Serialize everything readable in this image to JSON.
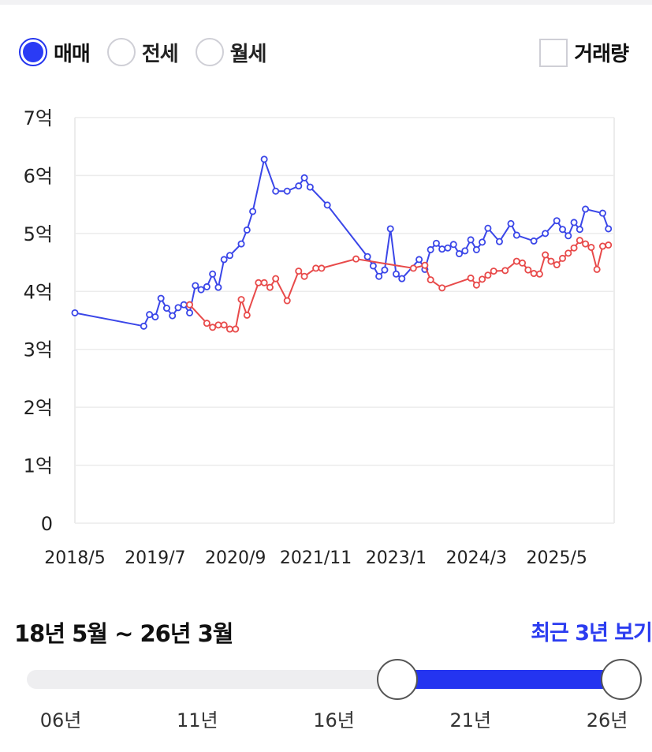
{
  "tabs": [
    {
      "label": "매매",
      "selected": true
    },
    {
      "label": "전세",
      "selected": false
    },
    {
      "label": "월세",
      "selected": false
    }
  ],
  "volume_toggle": {
    "label": "거래량",
    "checked": false
  },
  "colors": {
    "sale": "#3a46e8",
    "jeonse": "#e84a4a",
    "accent": "#2434f0",
    "grid": "#ececec"
  },
  "chart_data": {
    "type": "line",
    "y_ticks": [
      "0",
      "1억",
      "2억",
      "3억",
      "4억",
      "5억",
      "6억",
      "7억"
    ],
    "ylim": [
      0,
      7
    ],
    "y_unit": "억",
    "x_tick_labels": [
      "2018/5",
      "2019/7",
      "2020/9",
      "2021/11",
      "2023/1",
      "2024/3",
      "2025/5"
    ],
    "xlim": [
      "2018/5",
      "2026/3"
    ],
    "grid": true,
    "series": [
      {
        "color_key": "sale",
        "points": [
          [
            "2018/5",
            3.63
          ],
          [
            "2019/5",
            3.4
          ],
          [
            "2019/6",
            3.6
          ],
          [
            "2019/7",
            3.56
          ],
          [
            "2019/8",
            3.88
          ],
          [
            "2019/9",
            3.71
          ],
          [
            "2019/10",
            3.58
          ],
          [
            "2019/11",
            3.72
          ],
          [
            "2019/12",
            3.77
          ],
          [
            "2020/1",
            3.63
          ],
          [
            "2020/2",
            4.1
          ],
          [
            "2020/3",
            4.03
          ],
          [
            "2020/4",
            4.08
          ],
          [
            "2020/5",
            4.3
          ],
          [
            "2020/6",
            4.07
          ],
          [
            "2020/7",
            4.55
          ],
          [
            "2020/8",
            4.62
          ],
          [
            "2020/10",
            4.82
          ],
          [
            "2020/11",
            5.06
          ],
          [
            "2020/12",
            5.38
          ],
          [
            "2021/2",
            6.28
          ],
          [
            "2021/4",
            5.73
          ],
          [
            "2021/6",
            5.73
          ],
          [
            "2021/8",
            5.82
          ],
          [
            "2021/9",
            5.96
          ],
          [
            "2021/10",
            5.8
          ],
          [
            "2022/1",
            5.49
          ],
          [
            "2022/8",
            4.6
          ],
          [
            "2022/9",
            4.44
          ],
          [
            "2022/10",
            4.26
          ],
          [
            "2022/11",
            4.37
          ],
          [
            "2022/12",
            5.08
          ],
          [
            "2023/1",
            4.3
          ],
          [
            "2023/2",
            4.22
          ],
          [
            "2023/5",
            4.55
          ],
          [
            "2023/6",
            4.38
          ],
          [
            "2023/7",
            4.72
          ],
          [
            "2023/8",
            4.83
          ],
          [
            "2023/9",
            4.73
          ],
          [
            "2023/10",
            4.75
          ],
          [
            "2023/11",
            4.81
          ],
          [
            "2023/12",
            4.65
          ],
          [
            "2024/1",
            4.7
          ],
          [
            "2024/2",
            4.89
          ],
          [
            "2024/3",
            4.72
          ],
          [
            "2024/4",
            4.85
          ],
          [
            "2024/5",
            5.09
          ],
          [
            "2024/7",
            4.86
          ],
          [
            "2024/9",
            5.17
          ],
          [
            "2024/10",
            4.97
          ],
          [
            "2025/1",
            4.87
          ],
          [
            "2025/3",
            5.0
          ],
          [
            "2025/5",
            5.22
          ],
          [
            "2025/6",
            5.07
          ],
          [
            "2025/7",
            4.96
          ],
          [
            "2025/8",
            5.19
          ],
          [
            "2025/9",
            5.07
          ],
          [
            "2025/10",
            5.42
          ],
          [
            "2026/1",
            5.35
          ],
          [
            "2026/2",
            5.08
          ]
        ]
      },
      {
        "color_key": "jeonse",
        "points": [
          [
            "2020/1",
            3.77
          ],
          [
            "2020/4",
            3.45
          ],
          [
            "2020/5",
            3.38
          ],
          [
            "2020/6",
            3.42
          ],
          [
            "2020/7",
            3.42
          ],
          [
            "2020/8",
            3.35
          ],
          [
            "2020/9",
            3.35
          ],
          [
            "2020/10",
            3.86
          ],
          [
            "2020/11",
            3.59
          ],
          [
            "2021/1",
            4.15
          ],
          [
            "2021/2",
            4.15
          ],
          [
            "2021/3",
            4.07
          ],
          [
            "2021/4",
            4.22
          ],
          [
            "2021/6",
            3.84
          ],
          [
            "2021/8",
            4.35
          ],
          [
            "2021/9",
            4.26
          ],
          [
            "2021/11",
            4.4
          ],
          [
            "2021/12",
            4.4
          ],
          [
            "2022/6",
            4.56
          ],
          [
            "2023/4",
            4.4
          ],
          [
            "2023/6",
            4.45
          ],
          [
            "2023/7",
            4.2
          ],
          [
            "2023/9",
            4.06
          ],
          [
            "2024/2",
            4.23
          ],
          [
            "2024/3",
            4.11
          ],
          [
            "2024/4",
            4.21
          ],
          [
            "2024/5",
            4.28
          ],
          [
            "2024/6",
            4.35
          ],
          [
            "2024/8",
            4.36
          ],
          [
            "2024/10",
            4.52
          ],
          [
            "2024/11",
            4.49
          ],
          [
            "2024/12",
            4.37
          ],
          [
            "2025/1",
            4.31
          ],
          [
            "2025/2",
            4.3
          ],
          [
            "2025/3",
            4.63
          ],
          [
            "2025/4",
            4.52
          ],
          [
            "2025/5",
            4.46
          ],
          [
            "2025/6",
            4.57
          ],
          [
            "2025/7",
            4.66
          ],
          [
            "2025/8",
            4.75
          ],
          [
            "2025/9",
            4.88
          ],
          [
            "2025/10",
            4.82
          ],
          [
            "2025/11",
            4.76
          ],
          [
            "2025/12",
            4.38
          ],
          [
            "2026/1",
            4.78
          ],
          [
            "2026/2",
            4.8
          ]
        ]
      }
    ]
  },
  "range": {
    "text": "18년 5월 ~ 26년 3월",
    "recent_button": "최근 3년 보기"
  },
  "slider": {
    "ticks": [
      "06년",
      "11년",
      "16년",
      "21년",
      "26년"
    ],
    "min_year": 2006,
    "max_year": 2026,
    "start": "2018/5",
    "end": "2026/3"
  }
}
